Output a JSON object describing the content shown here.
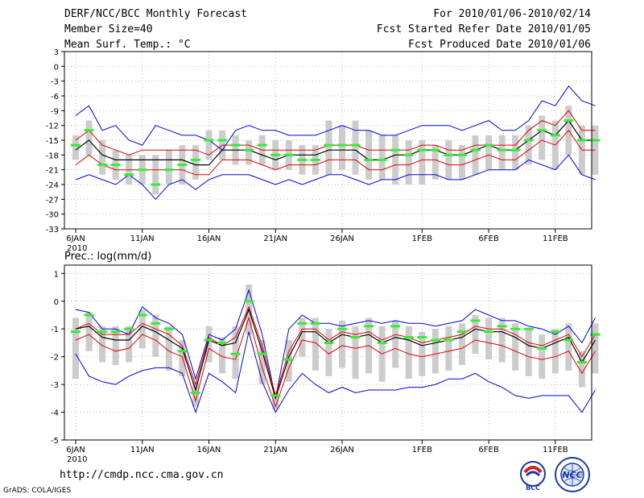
{
  "header": {
    "title": "DERF/NCC/BCC Monthly Forecast",
    "member_size": "Member Size=40",
    "variable": "Mean Surf. Temp.: °C",
    "period": "For 2010/01/06-2010/02/14",
    "started": "Fcst Started Refer Date 2010/01/05",
    "produced": "Fcst Produced Date 2010/01/06"
  },
  "footer": {
    "url": "http://cmdp.ncc.cma.gov.cn",
    "grads": "GrADS: COLA/IGES",
    "logo_bcc": "BCC",
    "logo_ncc": "NCC"
  },
  "colors": {
    "outer": "#0000e0",
    "inner": "#e00000",
    "mean": "#000000",
    "member": "#33ee33",
    "spread": "#cccccc",
    "grid": "#999999"
  },
  "chart_data": [
    {
      "type": "line",
      "title": "Mean Surf. Temp.: °C",
      "x_tick_labels": [
        "6JAN",
        "11JAN",
        "16JAN",
        "21JAN",
        "26JAN",
        "1FEB",
        "6FEB",
        "11FEB"
      ],
      "x_tick_index": [
        0,
        5,
        10,
        15,
        20,
        26,
        31,
        36
      ],
      "year_label": "2010",
      "y_ticks": [
        3,
        0,
        -3,
        -6,
        -9,
        -12,
        -15,
        -18,
        -21,
        -24,
        -27,
        -30,
        -33
      ],
      "ylim": [
        -33,
        3
      ],
      "n_days": 40,
      "max": [
        -10,
        -8,
        -13,
        -12,
        -15,
        -16,
        -12,
        -13,
        -14,
        -14,
        -15,
        -17,
        -13,
        -12,
        -13,
        -13,
        -14,
        -14,
        -14,
        -13,
        -12,
        -13,
        -13,
        -14,
        -14,
        -13,
        -12,
        -12,
        -12,
        -13,
        -12,
        -11,
        -13,
        -13,
        -11,
        -7,
        -8,
        -4,
        -7,
        -8
      ],
      "upper": [
        -15,
        -13,
        -16,
        -17,
        -18,
        -17,
        -17,
        -17,
        -17,
        -17,
        -18,
        -16,
        -16,
        -16,
        -17,
        -17,
        -17,
        -17,
        -17,
        -16,
        -16,
        -16,
        -17,
        -17,
        -17,
        -17,
        -16,
        -16,
        -17,
        -17,
        -16,
        -16,
        -16,
        -16,
        -13,
        -11,
        -12,
        -9,
        -13,
        -13
      ],
      "mean": [
        -17,
        -15,
        -18,
        -19,
        -19,
        -19,
        -19,
        -19,
        -19,
        -20,
        -20,
        -17,
        -17,
        -17,
        -18,
        -19,
        -18,
        -18,
        -18,
        -17,
        -17,
        -17,
        -19,
        -19,
        -18,
        -18,
        -17,
        -17,
        -18,
        -18,
        -17,
        -16,
        -17,
        -17,
        -15,
        -13,
        -14,
        -11,
        -15,
        -15
      ],
      "lower": [
        -20,
        -18,
        -20,
        -21,
        -21,
        -21,
        -21,
        -21,
        -21,
        -22,
        -22,
        -19,
        -19,
        -19,
        -20,
        -21,
        -20,
        -20,
        -20,
        -19,
        -19,
        -19,
        -21,
        -21,
        -20,
        -20,
        -19,
        -19,
        -20,
        -20,
        -19,
        -18,
        -19,
        -19,
        -17,
        -15,
        -16,
        -13,
        -17,
        -17
      ],
      "min": [
        -23,
        -22,
        -23,
        -24,
        -22,
        -24,
        -27,
        -24,
        -23,
        -25,
        -23,
        -22,
        -22,
        -22,
        -23,
        -24,
        -23,
        -24,
        -23,
        -22,
        -22,
        -23,
        -24,
        -23,
        -23,
        -22,
        -22,
        -22,
        -23,
        -23,
        -22,
        -21,
        -21,
        -21,
        -19,
        -20,
        -21,
        -18,
        -22,
        -23
      ],
      "member_control": [
        -16,
        -13,
        -20,
        -20,
        -22,
        -21,
        -24,
        -21,
        -20,
        -19,
        -15,
        -15,
        -16,
        -17,
        -16,
        -18,
        -18,
        -19,
        -19,
        -16,
        -16,
        -16,
        -19,
        -19,
        -17,
        -18,
        -17,
        -17,
        -18,
        -18,
        -17,
        -16,
        -17,
        -17,
        -15,
        -13,
        -14,
        -11,
        -15,
        -15
      ],
      "spread_top": [
        -14,
        -11,
        -15,
        -17,
        -18,
        -18,
        -18,
        -17,
        -16,
        -16,
        -13,
        -13,
        -14,
        -15,
        -14,
        -15,
        -15,
        -16,
        -16,
        -11,
        -12,
        -11,
        -13,
        -14,
        -14,
        -15,
        -15,
        -16,
        -15,
        -16,
        -14,
        -14,
        -14,
        -14,
        -12,
        -10,
        -11,
        -8,
        -12,
        -12
      ],
      "spread_bottom": [
        -19,
        -18,
        -22,
        -23,
        -24,
        -24,
        -26,
        -24,
        -24,
        -23,
        -19,
        -19,
        -20,
        -20,
        -20,
        -21,
        -21,
        -22,
        -22,
        -22,
        -21,
        -22,
        -23,
        -23,
        -24,
        -24,
        -24,
        -23,
        -23,
        -23,
        -22,
        -21,
        -21,
        -21,
        -20,
        -19,
        -21,
        -18,
        -22,
        -22
      ]
    },
    {
      "type": "line",
      "title": "Prec.: log(mm/d)",
      "x_tick_labels": [
        "6JAN",
        "11JAN",
        "16JAN",
        "21JAN",
        "26JAN",
        "1FEB",
        "6FEB",
        "11FEB"
      ],
      "x_tick_index": [
        0,
        5,
        10,
        15,
        20,
        26,
        31,
        36
      ],
      "year_label": "2010",
      "y_ticks": [
        1,
        0,
        -1,
        -2,
        -3,
        -4,
        -5
      ],
      "ylim": [
        -5,
        1.3
      ],
      "n_days": 40,
      "max": [
        -0.3,
        -0.4,
        -1.0,
        -1.0,
        -1.2,
        -0.2,
        -0.6,
        -0.8,
        -1.2,
        -2.8,
        -1.2,
        -1.4,
        -1.0,
        0.4,
        -1.2,
        -3.5,
        -1.0,
        -0.5,
        -0.8,
        -0.8,
        -0.9,
        -0.8,
        -0.7,
        -0.8,
        -0.7,
        -0.8,
        -0.8,
        -0.9,
        -0.8,
        -0.7,
        -0.3,
        -0.5,
        -0.7,
        -0.7,
        -0.9,
        -1.0,
        -1.2,
        -0.9,
        -1.5,
        -0.6
      ],
      "upper": [
        -1.0,
        -0.8,
        -1.2,
        -1.2,
        -1.2,
        -0.8,
        -1.0,
        -1.2,
        -1.6,
        -3.0,
        -1.3,
        -1.6,
        -1.3,
        -0.2,
        -1.6,
        -3.4,
        -1.8,
        -1.0,
        -1.0,
        -1.4,
        -1.1,
        -1.2,
        -1.1,
        -1.4,
        -1.2,
        -1.3,
        -1.5,
        -1.4,
        -1.3,
        -1.2,
        -0.9,
        -1.0,
        -1.0,
        -1.2,
        -1.5,
        -1.6,
        -1.4,
        -1.2,
        -2.0,
        -1.2
      ],
      "mean": [
        -1.0,
        -0.9,
        -1.3,
        -1.4,
        -1.4,
        -0.9,
        -1.1,
        -1.4,
        -1.7,
        -3.2,
        -1.4,
        -1.6,
        -1.5,
        -0.3,
        -1.8,
        -3.5,
        -2.0,
        -1.1,
        -1.1,
        -1.5,
        -1.2,
        -1.3,
        -1.2,
        -1.5,
        -1.3,
        -1.4,
        -1.6,
        -1.5,
        -1.4,
        -1.3,
        -1.0,
        -1.1,
        -1.1,
        -1.3,
        -1.6,
        -1.7,
        -1.5,
        -1.3,
        -2.2,
        -1.4
      ],
      "lower": [
        -1.4,
        -1.2,
        -1.6,
        -1.8,
        -1.7,
        -1.2,
        -1.4,
        -1.8,
        -2.0,
        -3.6,
        -1.7,
        -2.0,
        -2.1,
        -0.6,
        -2.4,
        -3.8,
        -2.4,
        -1.4,
        -1.5,
        -1.9,
        -1.6,
        -1.7,
        -1.6,
        -1.9,
        -1.7,
        -1.9,
        -2.0,
        -1.9,
        -1.8,
        -1.7,
        -1.4,
        -1.5,
        -1.6,
        -1.8,
        -2.0,
        -2.1,
        -2.0,
        -1.8,
        -2.6,
        -1.8
      ],
      "min": [
        -1.9,
        -2.7,
        -2.9,
        -3.0,
        -2.7,
        -2.5,
        -2.4,
        -2.4,
        -2.6,
        -4.0,
        -2.6,
        -2.9,
        -3.3,
        -1.1,
        -2.9,
        -4.0,
        -3.2,
        -2.6,
        -3.0,
        -3.3,
        -3.1,
        -3.3,
        -3.2,
        -3.2,
        -3.2,
        -3.1,
        -3.1,
        -3.0,
        -2.8,
        -2.8,
        -2.6,
        -2.9,
        -3.1,
        -3.4,
        -3.5,
        -3.4,
        -3.4,
        -3.4,
        -4.0,
        -3.2
      ],
      "member_control": [
        -1.1,
        -0.5,
        -1.1,
        -1.1,
        -1.0,
        -0.5,
        -0.8,
        -1.0,
        -1.8,
        -3.3,
        -1.4,
        -1.5,
        -1.9,
        0.0,
        -1.9,
        -3.4,
        -2.1,
        -0.8,
        -0.8,
        -1.5,
        -1.0,
        -1.3,
        -0.9,
        -1.5,
        -0.9,
        -1.3,
        -1.3,
        -1.4,
        -1.4,
        -1.1,
        -0.7,
        -1.1,
        -0.9,
        -1.0,
        -1.0,
        -1.7,
        -1.1,
        -1.4,
        -2.2,
        -1.2
      ],
      "spread_top": [
        -0.6,
        -0.4,
        -0.9,
        -0.9,
        -0.9,
        -0.3,
        -0.5,
        -0.9,
        -1.4,
        -2.9,
        -0.9,
        -1.3,
        -0.9,
        0.6,
        -1.4,
        -3.3,
        -1.4,
        -0.6,
        -0.6,
        -1.0,
        -0.7,
        -0.9,
        -0.6,
        -0.9,
        -0.7,
        -0.9,
        -1.1,
        -1.0,
        -0.9,
        -0.8,
        -0.5,
        -0.6,
        -0.6,
        -0.8,
        -1.0,
        -1.2,
        -1.0,
        -0.8,
        -1.8,
        -0.8
      ],
      "spread_bottom": [
        -2.8,
        -1.8,
        -2.2,
        -2.3,
        -2.2,
        -1.7,
        -2.0,
        -2.5,
        -2.7,
        -3.8,
        -2.2,
        -2.6,
        -2.8,
        -1.2,
        -3.0,
        -3.9,
        -2.9,
        -2.0,
        -2.5,
        -2.7,
        -2.4,
        -2.8,
        -2.6,
        -2.9,
        -2.4,
        -2.8,
        -2.7,
        -2.6,
        -2.5,
        -2.3,
        -1.9,
        -2.1,
        -2.2,
        -2.5,
        -2.7,
        -2.8,
        -2.6,
        -2.5,
        -3.1,
        -2.6
      ]
    }
  ]
}
